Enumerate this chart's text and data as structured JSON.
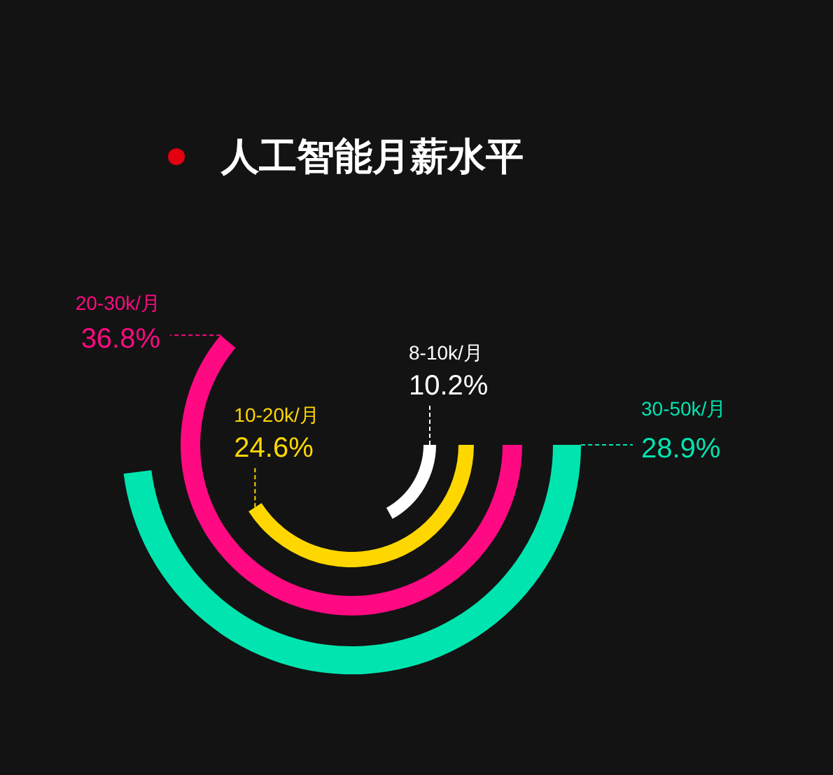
{
  "chart_data": {
    "type": "other",
    "title": "人工智能月薪水平",
    "categories": [
      "8-10k/月",
      "10-20k/月",
      "20-30k/月",
      "30-50k/月"
    ],
    "values": [
      10.2,
      24.6,
      36.8,
      28.9
    ],
    "colors": [
      "#ffffff",
      "#ffd700",
      "#ff0a82",
      "#00e5b0"
    ],
    "value_labels": [
      "10.2%",
      "24.6%",
      "36.8%",
      "28.9%"
    ]
  }
}
